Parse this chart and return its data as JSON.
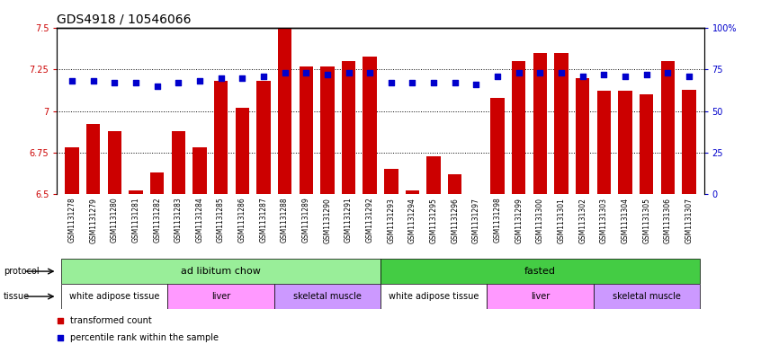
{
  "title": "GDS4918 / 10546066",
  "samples": [
    "GSM1131278",
    "GSM1131279",
    "GSM1131280",
    "GSM1131281",
    "GSM1131282",
    "GSM1131283",
    "GSM1131284",
    "GSM1131285",
    "GSM1131286",
    "GSM1131287",
    "GSM1131288",
    "GSM1131289",
    "GSM1131290",
    "GSM1131291",
    "GSM1131292",
    "GSM1131293",
    "GSM1131294",
    "GSM1131295",
    "GSM1131296",
    "GSM1131297",
    "GSM1131298",
    "GSM1131299",
    "GSM1131300",
    "GSM1131301",
    "GSM1131302",
    "GSM1131303",
    "GSM1131304",
    "GSM1131305",
    "GSM1131306",
    "GSM1131307"
  ],
  "bar_values": [
    6.78,
    6.92,
    6.88,
    6.52,
    6.63,
    6.88,
    6.78,
    7.18,
    7.02,
    7.18,
    7.5,
    7.27,
    7.27,
    7.3,
    7.33,
    6.65,
    6.52,
    6.73,
    6.62,
    6.5,
    7.08,
    7.3,
    7.35,
    7.35,
    7.2,
    7.12,
    7.12,
    7.1,
    7.3,
    7.13
  ],
  "dot_values": [
    68,
    68,
    67,
    67,
    65,
    67,
    68,
    70,
    70,
    71,
    73,
    73,
    72,
    73,
    73,
    67,
    67,
    67,
    67,
    66,
    71,
    73,
    73,
    73,
    71,
    72,
    71,
    72,
    73,
    71
  ],
  "bar_color": "#CC0000",
  "dot_color": "#0000CC",
  "ylim_left": [
    6.5,
    7.5
  ],
  "ylim_right": [
    0,
    100
  ],
  "yticks_left": [
    6.5,
    6.75,
    7.0,
    7.25,
    7.5
  ],
  "yticks_right": [
    0,
    25,
    50,
    75,
    100
  ],
  "ytick_labels_left": [
    "6.5",
    "6.75",
    "7",
    "7.25",
    "7.5"
  ],
  "ytick_labels_right": [
    "0",
    "25",
    "50",
    "75",
    "100%"
  ],
  "hlines": [
    6.75,
    7.0,
    7.25
  ],
  "protocol_groups": [
    {
      "label": "ad libitum chow",
      "start": 0,
      "end": 14,
      "color": "#99EE99"
    },
    {
      "label": "fasted",
      "start": 15,
      "end": 29,
      "color": "#44CC44"
    }
  ],
  "tissue_groups": [
    {
      "label": "white adipose tissue",
      "start": 0,
      "end": 4,
      "color": "#FFFFFF"
    },
    {
      "label": "liver",
      "start": 5,
      "end": 9,
      "color": "#FF99FF"
    },
    {
      "label": "skeletal muscle",
      "start": 10,
      "end": 14,
      "color": "#CC99FF"
    },
    {
      "label": "white adipose tissue",
      "start": 15,
      "end": 19,
      "color": "#FFFFFF"
    },
    {
      "label": "liver",
      "start": 20,
      "end": 24,
      "color": "#FF99FF"
    },
    {
      "label": "skeletal muscle",
      "start": 25,
      "end": 29,
      "color": "#CC99FF"
    }
  ],
  "legend_items": [
    {
      "label": "transformed count",
      "color": "#CC0000"
    },
    {
      "label": "percentile rank within the sample",
      "color": "#0000CC"
    }
  ],
  "title_fontsize": 10,
  "tick_fontsize": 7,
  "bar_label_fontsize": 5.5,
  "group_label_fontsize": 8,
  "xtick_area_color": "#DDDDDD"
}
